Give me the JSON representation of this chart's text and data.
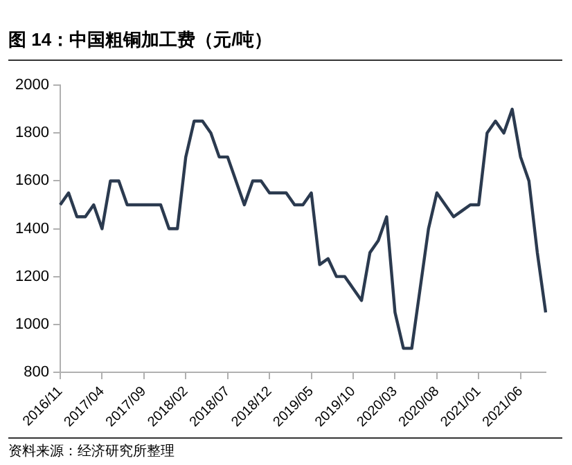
{
  "chart_data": {
    "type": "line",
    "title": "图 14：中国粗铜加工费（元/吨）",
    "categories": [
      "2016/11",
      null,
      null,
      null,
      null,
      "2017/04",
      null,
      null,
      null,
      null,
      "2017/09",
      null,
      null,
      null,
      null,
      "2018/02",
      null,
      null,
      null,
      null,
      "2018/07",
      null,
      null,
      null,
      null,
      "2018/12",
      null,
      null,
      null,
      null,
      "2019/05",
      null,
      null,
      null,
      null,
      "2019/10",
      null,
      null,
      null,
      null,
      "2020/03",
      null,
      null,
      null,
      null,
      "2020/08",
      null,
      null,
      null,
      null,
      "2021/01",
      null,
      null,
      null,
      null,
      "2021/06",
      null,
      null,
      null
    ],
    "series": [
      {
        "color": "#2b3a4f",
        "values": [
          1500,
          1550,
          1450,
          1450,
          1500,
          1400,
          1600,
          1600,
          1500,
          1500,
          1500,
          1500,
          1500,
          1400,
          1400,
          1700,
          1850,
          1850,
          1800,
          1700,
          1700,
          1600,
          1500,
          1600,
          1600,
          1550,
          1550,
          1550,
          1500,
          1500,
          1550,
          1250,
          1275,
          1200,
          1200,
          1150,
          1100,
          1300,
          1350,
          1450,
          1050,
          900,
          900,
          1150,
          1400,
          1550,
          1500,
          1450,
          1475,
          1500,
          1500,
          1800,
          1850,
          1800,
          1900,
          1700,
          1600,
          1300,
          1050
        ]
      }
    ],
    "ylim": [
      800,
      2000
    ],
    "yticks": [
      800,
      1000,
      1200,
      1400,
      1600,
      1800,
      2000
    ],
    "grid": false,
    "legend": false,
    "marker": "none",
    "line_style": "solid",
    "annotations": [
      "资料来源：经济研究所整理"
    ]
  }
}
